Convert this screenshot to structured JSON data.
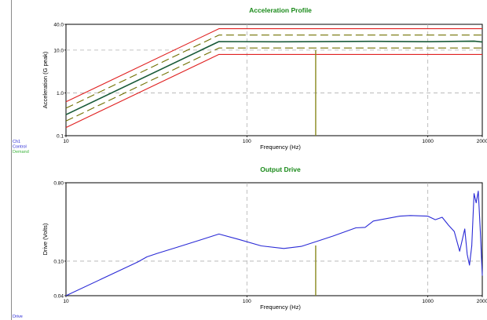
{
  "legend_top": {
    "items": [
      {
        "label": "Ch1",
        "color": "#2a2ad6"
      },
      {
        "label": "Control",
        "color": "#2a2ad6"
      },
      {
        "label": "Demand",
        "color": "#3cb43c"
      }
    ]
  },
  "legend_bottom": {
    "items": [
      {
        "label": "Drive",
        "color": "#2a2ad6"
      }
    ]
  },
  "chart_data": [
    {
      "type": "line",
      "title": "Acceleration Profile",
      "title_color": "#1a8a1a",
      "xlabel": "Frequency (Hz)",
      "ylabel": "Acceleration (G peak)",
      "xscale": "log",
      "yscale": "log",
      "xlim": [
        10,
        2000
      ],
      "ylim": [
        0.1,
        40
      ],
      "xticks": [
        {
          "v": 10,
          "label": "10"
        },
        {
          "v": 100,
          "label": "100"
        },
        {
          "v": 1000,
          "label": "1000"
        },
        {
          "v": 2000,
          "label": "2000"
        }
      ],
      "yticks": [
        {
          "v": 0.1,
          "label": "0.1"
        },
        {
          "v": 1,
          "label": "1.0"
        },
        {
          "v": 10,
          "label": "10.0"
        },
        {
          "v": 40,
          "label": "40.0"
        }
      ],
      "grid": true,
      "cursor_x": 240,
      "series": [
        {
          "role": "abort_upper",
          "color": "#e02020",
          "style": "solid",
          "x": [
            10,
            70,
            2000
          ],
          "y": [
            0.62,
            31.6,
            31.6
          ]
        },
        {
          "role": "alarm_upper",
          "color": "#707000",
          "style": "dashed",
          "x": [
            10,
            70,
            2000
          ],
          "y": [
            0.44,
            22.4,
            22.4
          ]
        },
        {
          "role": "alarm_lower",
          "color": "#707000",
          "style": "dashed",
          "x": [
            10,
            70,
            2000
          ],
          "y": [
            0.22,
            11.2,
            11.2
          ]
        },
        {
          "role": "abort_lower",
          "color": "#e02020",
          "style": "solid",
          "x": [
            10,
            70,
            2000
          ],
          "y": [
            0.155,
            7.9,
            7.9
          ]
        },
        {
          "role": "demand",
          "color": "#3cb43c",
          "style": "solid",
          "x": [
            10,
            70,
            2000
          ],
          "y": [
            0.31,
            15.8,
            15.8
          ]
        },
        {
          "role": "control",
          "color": "#1a5a3a",
          "style": "solid",
          "x": [
            10,
            70,
            150,
            500,
            1000,
            1800,
            2000
          ],
          "y": [
            0.31,
            15.8,
            15.6,
            16.0,
            15.7,
            16.2,
            15.4
          ]
        }
      ]
    },
    {
      "type": "line",
      "title": "Output Drive",
      "title_color": "#1a8a1a",
      "xlabel": "Frequency (Hz)",
      "ylabel": "Drive (Volts)",
      "xscale": "log",
      "yscale": "log",
      "xlim": [
        10,
        2000
      ],
      "ylim": [
        0.04,
        0.8
      ],
      "xticks": [
        {
          "v": 10,
          "label": "10"
        },
        {
          "v": 100,
          "label": "100"
        },
        {
          "v": 1000,
          "label": "1000"
        },
        {
          "v": 2000,
          "label": "2000"
        }
      ],
      "yticks": [
        {
          "v": 0.04,
          "label": "0.04"
        },
        {
          "v": 0.1,
          "label": "0.10"
        },
        {
          "v": 0.8,
          "label": "0.80"
        }
      ],
      "grid": true,
      "cursor_x": 240,
      "series": [
        {
          "role": "drive",
          "color": "#2a2ad6",
          "style": "solid",
          "x": [
            10,
            25,
            28,
            32,
            40,
            55,
            70,
            90,
            120,
            160,
            200,
            250,
            300,
            400,
            450,
            500,
            700,
            800,
            1000,
            1100,
            1200,
            1300,
            1400,
            1500,
            1600,
            1650,
            1700,
            1750,
            1800,
            1850,
            1900,
            1950,
            2000
          ],
          "y": [
            0.04,
            0.098,
            0.112,
            0.123,
            0.142,
            0.175,
            0.205,
            0.178,
            0.15,
            0.14,
            0.148,
            0.172,
            0.195,
            0.242,
            0.245,
            0.29,
            0.33,
            0.335,
            0.33,
            0.3,
            0.32,
            0.26,
            0.22,
            0.13,
            0.235,
            0.12,
            0.09,
            0.15,
            0.6,
            0.47,
            0.64,
            0.22,
            0.068
          ]
        }
      ]
    }
  ]
}
